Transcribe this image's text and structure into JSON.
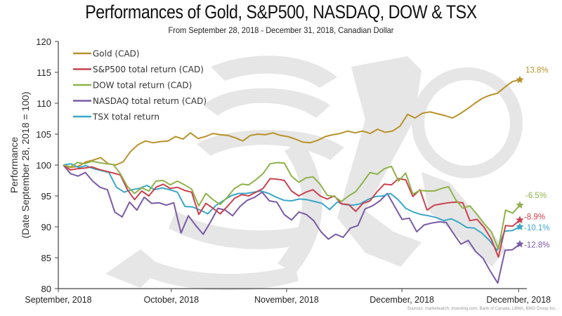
{
  "chart_data": {
    "type": "line",
    "title": "Performances of Gold, S&P500, NASDAQ, DOW & TSX",
    "subtitle": "From September 28, 2018 - December 31, 2018, Canadian Dollar",
    "xlabel": "",
    "ylabel_lines": [
      "Performance",
      "(Date September 28, 2018 = 100)"
    ],
    "ylim": [
      80,
      120
    ],
    "yticks": [
      80,
      85,
      90,
      95,
      100,
      105,
      110,
      115,
      120
    ],
    "xtick_labels": [
      "September, 2018",
      "October, 2018",
      "November, 2018",
      "December, 2018",
      "December, 2018"
    ],
    "xtick_positions": [
      -1.2,
      23.2,
      48.1,
      73.0,
      98.2
    ],
    "x_range": [
      -1.2,
      101.5
    ],
    "grid": false,
    "legend_position": "top-left",
    "source": "Sources: marketwatch, Investing.com, Bank of Canada, LBMA, BMG Group Inc.",
    "series": [
      {
        "name": "Gold (CAD)",
        "color": "#b8922a",
        "end_label": "13.8%",
        "values": [
          100,
          99.6,
          99.8,
          100.5,
          100.8,
          101.2,
          100.2,
          100.0,
          100.5,
          102.2,
          103.3,
          103.9,
          103.6,
          103.8,
          103.9,
          104.6,
          104.2,
          105.2,
          104.3,
          104.6,
          105.1,
          104.9,
          104.8,
          104.4,
          103.9,
          104.8,
          105.0,
          104.9,
          105.2,
          104.8,
          104.6,
          104.2,
          103.7,
          103.6,
          104.0,
          104.6,
          104.9,
          105.1,
          105.5,
          105.2,
          105.5,
          105.1,
          105.8,
          105.3,
          105.5,
          106.3,
          108.2,
          107.6,
          108.4,
          108.6,
          108.3,
          108.0,
          107.6,
          108.3,
          109.1,
          110.0,
          110.8,
          111.3,
          111.6,
          112.6,
          113.5,
          113.8
        ]
      },
      {
        "name": "S&P500 total return (CAD)",
        "color": "#c8424e",
        "end_label": "-8.9%",
        "values": [
          100,
          99.2,
          99.4,
          99.5,
          99.7,
          99.3,
          99.0,
          98.7,
          98.4,
          96.0,
          94.4,
          95.8,
          95.0,
          96.4,
          96.9,
          96.2,
          96.4,
          95.9,
          95.6,
          92.0,
          93.8,
          93.0,
          92.1,
          93.3,
          94.6,
          95.2,
          95.0,
          95.6,
          96.2,
          97.8,
          97.7,
          97.5,
          95.8,
          95.0,
          95.6,
          96.0,
          95.0,
          94.5,
          95.0,
          93.7,
          93.6,
          92.5,
          93.8,
          94.2,
          95.7,
          96.9,
          96.8,
          97.8,
          97.6,
          94.9,
          96.0,
          92.7,
          93.5,
          93.7,
          93.9,
          94.0,
          93.9,
          91.0,
          91.2,
          89.9,
          88.0,
          85.1,
          90.2,
          90.1,
          91.1
        ]
      },
      {
        "name": "DOW total return (CAD)",
        "color": "#8fb24a",
        "end_label": "-6.5%",
        "values": [
          100,
          99.7,
          100.4,
          100.2,
          100.6,
          100.4,
          100.2,
          100.1,
          98.6,
          96.5,
          95.4,
          96.3,
          95.8,
          97.4,
          97.5,
          96.8,
          97.4,
          96.8,
          96.1,
          93.4,
          95.4,
          94.4,
          93.6,
          94.8,
          96.2,
          96.9,
          96.8,
          97.6,
          98.6,
          100.2,
          100.4,
          100.3,
          98.2,
          97.2,
          97.9,
          98.1,
          96.9,
          95.1,
          94.9,
          94.1,
          95.0,
          95.7,
          97.2,
          98.8,
          98.5,
          99.4,
          99.8,
          97.4,
          98.7,
          95.3,
          95.9,
          95.8,
          95.8,
          96.2,
          96.5,
          94.4,
          93.0,
          93.4,
          92.0,
          90.5,
          89.2,
          86.4,
          92.7,
          92.2,
          93.5
        ]
      },
      {
        "name": "NASDAQ total return (CAD)",
        "color": "#7a5aa4",
        "end_label": "-12.8%",
        "values": [
          100,
          98.6,
          98.2,
          98.8,
          97.4,
          96.4,
          96.0,
          92.4,
          91.6,
          94.0,
          92.7,
          94.8,
          93.8,
          93.9,
          93.5,
          93.9,
          89.0,
          91.8,
          90.2,
          88.8,
          90.8,
          93.0,
          92.7,
          91.8,
          93.3,
          94.3,
          94.8,
          95.6,
          94.2,
          94.0,
          92.0,
          91.1,
          92.4,
          92.0,
          91.0,
          89.2,
          88.0,
          88.8,
          88.3,
          89.8,
          90.2,
          92.9,
          93.4,
          94.2,
          95.4,
          93.3,
          91.2,
          91.4,
          89.2,
          90.3,
          90.6,
          90.8,
          90.7,
          88.9,
          87.2,
          87.8,
          86.0,
          84.9,
          82.8,
          80.9,
          86.2,
          86.3,
          87.2
        ]
      },
      {
        "name": "TSX total return",
        "color": "#3aa7c8",
        "end_label": "-10.1%",
        "values": [
          100,
          100.2,
          99.6,
          99.9,
          99.4,
          99.1,
          98.8,
          96.4,
          95.6,
          96.0,
          96.2,
          96.7,
          96.0,
          96.3,
          96.0,
          95.6,
          93.3,
          93.2,
          92.7,
          92.1,
          93.4,
          94.2,
          95.0,
          95.4,
          95.4,
          95.6,
          95.8,
          95.4,
          94.8,
          94.3,
          94.2,
          94.5,
          94.4,
          94.1,
          93.8,
          92.8,
          94.0,
          93.6,
          93.5,
          93.7,
          94.4,
          94.9,
          95.0,
          95.4,
          94.4,
          93.0,
          92.4,
          92.0,
          91.8,
          91.5,
          91.0,
          91.3,
          90.7,
          89.9,
          89.8,
          89.0,
          87.8,
          86.2,
          89.3,
          89.4,
          90.0
        ]
      }
    ]
  }
}
